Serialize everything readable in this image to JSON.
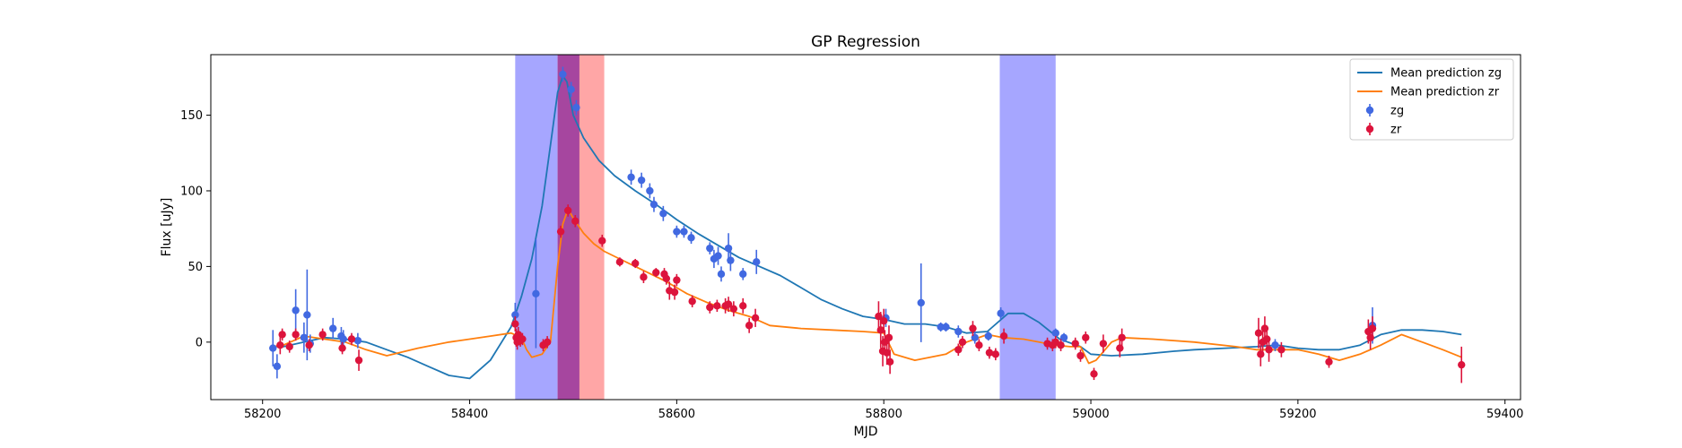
{
  "chart_data": {
    "type": "scatter",
    "title": "GP Regression",
    "xlabel": "MJD",
    "ylabel": "Flux [uJy]",
    "xlim": [
      58150,
      59415
    ],
    "ylim": [
      -38,
      190
    ],
    "xticks": [
      58200,
      58400,
      58600,
      58800,
      59000,
      59200,
      59400
    ],
    "yticks": [
      0,
      50,
      100,
      150
    ],
    "grid": false,
    "legend_position": "top-right",
    "shaded_regions": [
      {
        "x0": 58444,
        "x1": 58485,
        "color": "#0000ff",
        "opacity": 0.35
      },
      {
        "x0": 58485,
        "x1": 58506,
        "color": "#ff0000",
        "opacity": 0.35
      },
      {
        "x0": 58485,
        "x1": 58530,
        "color": "#ff0000",
        "opacity": 0.35
      },
      {
        "x0": 58485,
        "x1": 58506,
        "color": "#0000ff",
        "opacity": 0.35
      },
      {
        "x0": 58912,
        "x1": 58966,
        "color": "#0000ff",
        "opacity": 0.35
      }
    ],
    "lines": [
      {
        "name": "Mean prediction zg",
        "color": "#1f77b4",
        "x": [
          58210,
          58220,
          58240,
          58260,
          58280,
          58300,
          58320,
          58340,
          58360,
          58380,
          58400,
          58420,
          58440,
          58450,
          58460,
          58470,
          58480,
          58485,
          58490,
          58494,
          58500,
          58510,
          58525,
          58540,
          58560,
          58580,
          58600,
          58620,
          58640,
          58660,
          58680,
          58700,
          58720,
          58740,
          58760,
          58780,
          58800,
          58820,
          58840,
          58860,
          58880,
          58900,
          58920,
          58935,
          58950,
          58970,
          58990,
          59000,
          59020,
          59050,
          59080,
          59100,
          59130,
          59160,
          59180,
          59200,
          59220,
          59240,
          59260,
          59280,
          59300,
          59320,
          59340,
          59358
        ],
        "y": [
          -3,
          -3,
          0,
          3,
          2,
          0,
          -5,
          -10,
          -16,
          -22,
          -24,
          -12,
          10,
          30,
          55,
          90,
          140,
          165,
          176,
          172,
          150,
          135,
          120,
          110,
          100,
          91,
          81,
          72,
          64,
          56,
          50,
          44,
          36,
          28,
          22,
          17,
          15,
          12,
          12,
          10,
          6,
          7,
          19,
          19,
          13,
          2,
          -3,
          -8,
          -9,
          -8,
          -6,
          -5,
          -4,
          -3,
          -2,
          -4,
          -5,
          -5,
          -2,
          5,
          8,
          8,
          7,
          5
        ]
      },
      {
        "name": "Mean prediction zr",
        "color": "#ff7f0e",
        "x": [
          58210,
          58220,
          58240,
          58260,
          58280,
          58300,
          58320,
          58350,
          58380,
          58400,
          58420,
          58440,
          58450,
          58455,
          58460,
          58470,
          58478,
          58485,
          58490,
          58495,
          58500,
          58510,
          58520,
          58530,
          58545,
          58560,
          58575,
          58590,
          58610,
          58630,
          58650,
          58670,
          58690,
          58720,
          58750,
          58780,
          58800,
          58810,
          58830,
          58860,
          58880,
          58900,
          58915,
          58935,
          58950,
          58965,
          58980,
          58990,
          58998,
          59005,
          59020,
          59030,
          59060,
          59100,
          59140,
          59160,
          59180,
          59200,
          59220,
          59240,
          59260,
          59280,
          59300,
          59320,
          59340,
          59358
        ],
        "y": [
          -3,
          -2,
          4,
          2,
          0,
          -5,
          -9,
          -4,
          0,
          2,
          4,
          6,
          3,
          -5,
          -10,
          -8,
          0,
          50,
          78,
          88,
          82,
          72,
          65,
          60,
          55,
          50,
          45,
          40,
          32,
          26,
          21,
          17,
          11,
          9,
          8,
          7,
          6,
          -8,
          -12,
          -8,
          0,
          5,
          3,
          2,
          0,
          -2,
          -3,
          -3,
          -14,
          -12,
          0,
          3,
          2,
          0,
          -3,
          -5,
          -5,
          -5,
          -8,
          -12,
          -8,
          -2,
          5,
          0,
          -5,
          -10
        ]
      }
    ],
    "series": [
      {
        "name": "zg",
        "color": "#4169e1",
        "points": [
          [
            58210,
            -4,
            12
          ],
          [
            58214,
            -16,
            8
          ],
          [
            58232,
            21,
            14
          ],
          [
            58240,
            3,
            10
          ],
          [
            58243,
            18,
            30
          ],
          [
            58246,
            -1,
            6
          ],
          [
            58268,
            9,
            7
          ],
          [
            58276,
            4,
            6
          ],
          [
            58278,
            2,
            6
          ],
          [
            58292,
            1,
            5
          ],
          [
            58444,
            18,
            8
          ],
          [
            58464,
            32,
            36
          ],
          [
            58490,
            177,
            5
          ],
          [
            58498,
            167,
            5
          ],
          [
            58503,
            155,
            5
          ],
          [
            58556,
            109,
            5
          ],
          [
            58566,
            107,
            5
          ],
          [
            58574,
            100,
            5
          ],
          [
            58578,
            91,
            5
          ],
          [
            58587,
            85,
            5
          ],
          [
            58600,
            73,
            4
          ],
          [
            58607,
            73,
            4
          ],
          [
            58614,
            69,
            4
          ],
          [
            58632,
            62,
            4
          ],
          [
            58636,
            55,
            6
          ],
          [
            58640,
            57,
            6
          ],
          [
            58643,
            45,
            5
          ],
          [
            58650,
            62,
            10
          ],
          [
            58652,
            54,
            7
          ],
          [
            58664,
            45,
            4
          ],
          [
            58677,
            53,
            8
          ],
          [
            58802,
            16,
            6
          ],
          [
            58836,
            26,
            26
          ],
          [
            58855,
            10,
            3
          ],
          [
            58860,
            10,
            3
          ],
          [
            58872,
            7,
            4
          ],
          [
            58888,
            3,
            4
          ],
          [
            58901,
            4,
            3
          ],
          [
            58913,
            19,
            4
          ],
          [
            58966,
            6,
            3
          ],
          [
            58974,
            3,
            3
          ],
          [
            59178,
            -2,
            4
          ],
          [
            59272,
            11,
            12
          ]
        ]
      },
      {
        "name": "zr",
        "color": "#dc143c",
        "points": [
          [
            58217,
            -2,
            6
          ],
          [
            58219,
            5,
            4
          ],
          [
            58226,
            -3,
            4
          ],
          [
            58232,
            5,
            4
          ],
          [
            58245,
            -2,
            4
          ],
          [
            58258,
            5,
            4
          ],
          [
            58277,
            -4,
            4
          ],
          [
            58286,
            2,
            4
          ],
          [
            58293,
            -12,
            7
          ],
          [
            58444,
            12,
            5
          ],
          [
            58445,
            3,
            6
          ],
          [
            58446,
            0,
            5
          ],
          [
            58447,
            5,
            5
          ],
          [
            58449,
            1,
            4
          ],
          [
            58451,
            2,
            4
          ],
          [
            58471,
            -2,
            4
          ],
          [
            58475,
            0,
            4
          ],
          [
            58488,
            73,
            4
          ],
          [
            58495,
            87,
            4
          ],
          [
            58502,
            80,
            4
          ],
          [
            58528,
            67,
            4
          ],
          [
            58545,
            53,
            3
          ],
          [
            58560,
            52,
            3
          ],
          [
            58568,
            43,
            4
          ],
          [
            58580,
            46,
            3
          ],
          [
            58588,
            45,
            4
          ],
          [
            58590,
            42,
            4
          ],
          [
            58593,
            34,
            6
          ],
          [
            58598,
            33,
            5
          ],
          [
            58600,
            41,
            4
          ],
          [
            58615,
            27,
            4
          ],
          [
            58632,
            23,
            4
          ],
          [
            58639,
            24,
            4
          ],
          [
            58647,
            24,
            5
          ],
          [
            58650,
            25,
            5
          ],
          [
            58655,
            22,
            5
          ],
          [
            58664,
            24,
            5
          ],
          [
            58670,
            11,
            5
          ],
          [
            58676,
            16,
            6
          ],
          [
            58795,
            17,
            10
          ],
          [
            58797,
            8,
            12
          ],
          [
            58799,
            -6,
            10
          ],
          [
            58800,
            14,
            8
          ],
          [
            58801,
            0,
            8
          ],
          [
            58803,
            -7,
            8
          ],
          [
            58805,
            3,
            8
          ],
          [
            58806,
            -13,
            8
          ],
          [
            58872,
            -5,
            4
          ],
          [
            58876,
            0,
            4
          ],
          [
            58886,
            9,
            5
          ],
          [
            58892,
            -2,
            4
          ],
          [
            58902,
            -7,
            4
          ],
          [
            58908,
            -8,
            4
          ],
          [
            58916,
            4,
            5
          ],
          [
            58958,
            -1,
            4
          ],
          [
            58963,
            -2,
            4
          ],
          [
            58966,
            0,
            4
          ],
          [
            58971,
            -2,
            4
          ],
          [
            58985,
            -1,
            4
          ],
          [
            58990,
            -9,
            4
          ],
          [
            58995,
            3,
            4
          ],
          [
            59003,
            -21,
            4
          ],
          [
            59012,
            -1,
            6
          ],
          [
            59028,
            -4,
            6
          ],
          [
            59030,
            3,
            6
          ],
          [
            59162,
            6,
            10
          ],
          [
            59164,
            -8,
            8
          ],
          [
            59166,
            0,
            8
          ],
          [
            59168,
            9,
            8
          ],
          [
            59170,
            2,
            8
          ],
          [
            59172,
            -5,
            8
          ],
          [
            59184,
            -5,
            5
          ],
          [
            59230,
            -13,
            4
          ],
          [
            59268,
            7,
            8
          ],
          [
            59270,
            3,
            8
          ],
          [
            59272,
            9,
            8
          ],
          [
            59358,
            -15,
            12
          ]
        ]
      }
    ]
  }
}
